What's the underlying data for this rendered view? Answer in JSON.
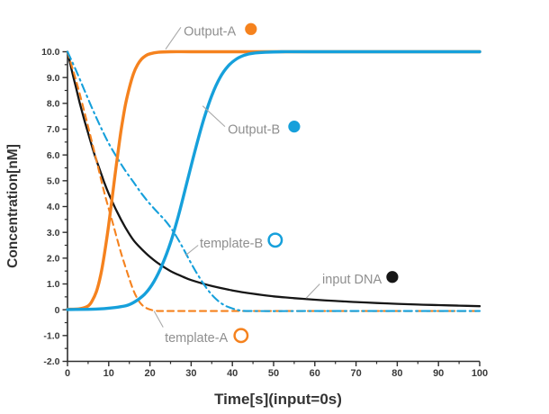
{
  "chart_data": {
    "type": "line",
    "title": "",
    "xlabel": "Time[s](input=0s)",
    "ylabel": "Concentration[nM]",
    "xlim": [
      0,
      100
    ],
    "ylim": [
      -2,
      10
    ],
    "grid": false,
    "x_tick_values": [
      0,
      10,
      20,
      30,
      40,
      50,
      60,
      70,
      80,
      90,
      100
    ],
    "x_tick_labels": [
      "0",
      "10",
      "20",
      "30",
      "40",
      "50",
      "60",
      "70",
      "80",
      "90",
      "100"
    ],
    "x_minor_step": 5,
    "y_tick_values": [
      10,
      9,
      8,
      7,
      6,
      5,
      4,
      3,
      2,
      1,
      0,
      -1,
      -2
    ],
    "y_tick_labels": [
      "10.0",
      "9.0",
      "8.0",
      "7.0",
      "6.0",
      "5.0",
      "4.0",
      "3.0",
      "2.0",
      "1.0",
      "0",
      "-1.0",
      "-2.0"
    ],
    "y_minor_step": 0.5,
    "legend_position": "inline-callouts",
    "series": [
      {
        "name": "input DNA",
        "id": "input-dna",
        "color": "#161616",
        "line": "solid",
        "width": 2.3,
        "points": [
          [
            0,
            10
          ],
          [
            1,
            9.3
          ],
          [
            2,
            8.65
          ],
          [
            3,
            8.0
          ],
          [
            4,
            7.4
          ],
          [
            5,
            6.85
          ],
          [
            6,
            6.3
          ],
          [
            7,
            5.8
          ],
          [
            8,
            5.35
          ],
          [
            9,
            4.9
          ],
          [
            10,
            4.5
          ],
          [
            12,
            3.8
          ],
          [
            14,
            3.2
          ],
          [
            16,
            2.7
          ],
          [
            18,
            2.35
          ],
          [
            20,
            2.05
          ],
          [
            22,
            1.8
          ],
          [
            25,
            1.5
          ],
          [
            28,
            1.28
          ],
          [
            30,
            1.15
          ],
          [
            35,
            0.92
          ],
          [
            40,
            0.75
          ],
          [
            45,
            0.62
          ],
          [
            50,
            0.52
          ],
          [
            55,
            0.45
          ],
          [
            60,
            0.39
          ],
          [
            65,
            0.34
          ],
          [
            70,
            0.3
          ],
          [
            75,
            0.26
          ],
          [
            80,
            0.23
          ],
          [
            85,
            0.2
          ],
          [
            90,
            0.18
          ],
          [
            95,
            0.16
          ],
          [
            100,
            0.14
          ]
        ]
      },
      {
        "name": "template-A",
        "id": "template-a",
        "color": "#F5821E",
        "line": "dashed",
        "width": 2.1,
        "points": [
          [
            0,
            10
          ],
          [
            1.5,
            9.2
          ],
          [
            3,
            8.35
          ],
          [
            5,
            7.1
          ],
          [
            7,
            5.8
          ],
          [
            9,
            4.5
          ],
          [
            11,
            3.35
          ],
          [
            13,
            2.2
          ],
          [
            15,
            1.2
          ],
          [
            16,
            0.75
          ],
          [
            17,
            0.42
          ],
          [
            18,
            0.2
          ],
          [
            19,
            0.08
          ],
          [
            20,
            0.01
          ],
          [
            21.5,
            -0.04
          ],
          [
            24,
            -0.05
          ],
          [
            40,
            -0.05
          ],
          [
            70,
            -0.05
          ],
          [
            100,
            -0.05
          ]
        ]
      },
      {
        "name": "template-B",
        "id": "template-b",
        "color": "#16A0DB",
        "line": "dashdot",
        "width": 2.1,
        "points": [
          [
            0,
            10
          ],
          [
            2,
            9.3
          ],
          [
            4,
            8.55
          ],
          [
            6,
            7.8
          ],
          [
            8,
            7.1
          ],
          [
            10,
            6.45
          ],
          [
            12,
            5.9
          ],
          [
            14,
            5.4
          ],
          [
            16,
            4.95
          ],
          [
            18,
            4.5
          ],
          [
            20,
            4.1
          ],
          [
            22,
            3.75
          ],
          [
            24,
            3.4
          ],
          [
            26,
            2.95
          ],
          [
            28,
            2.4
          ],
          [
            30,
            1.8
          ],
          [
            32,
            1.25
          ],
          [
            34,
            0.78
          ],
          [
            36,
            0.42
          ],
          [
            38,
            0.18
          ],
          [
            40,
            0.05
          ],
          [
            42,
            -0.03
          ],
          [
            45,
            -0.05
          ],
          [
            60,
            -0.05
          ],
          [
            80,
            -0.05
          ],
          [
            100,
            -0.05
          ]
        ]
      },
      {
        "name": "Output-A",
        "id": "output-a",
        "color": "#F5821E",
        "line": "solid",
        "width": 3.4,
        "points": [
          [
            0,
            0.02
          ],
          [
            3,
            0.04
          ],
          [
            5,
            0.15
          ],
          [
            6,
            0.35
          ],
          [
            7,
            0.7
          ],
          [
            8,
            1.3
          ],
          [
            9,
            2.2
          ],
          [
            10,
            3.3
          ],
          [
            11,
            4.55
          ],
          [
            12,
            5.8
          ],
          [
            13,
            6.95
          ],
          [
            14,
            7.9
          ],
          [
            15,
            8.6
          ],
          [
            16,
            9.15
          ],
          [
            17,
            9.5
          ],
          [
            18,
            9.72
          ],
          [
            19,
            9.85
          ],
          [
            20,
            9.92
          ],
          [
            22,
            9.98
          ],
          [
            25,
            10
          ],
          [
            30,
            10
          ],
          [
            40,
            10
          ],
          [
            60,
            10
          ],
          [
            80,
            10
          ],
          [
            100,
            10
          ]
        ]
      },
      {
        "name": "Output-B",
        "id": "output-b",
        "color": "#16A0DB",
        "line": "solid",
        "width": 3.4,
        "points": [
          [
            0,
            0.01
          ],
          [
            6,
            0.02
          ],
          [
            10,
            0.06
          ],
          [
            13,
            0.12
          ],
          [
            15,
            0.2
          ],
          [
            17,
            0.38
          ],
          [
            19,
            0.65
          ],
          [
            21,
            1.1
          ],
          [
            23,
            1.75
          ],
          [
            25,
            2.6
          ],
          [
            27,
            3.7
          ],
          [
            29,
            4.95
          ],
          [
            31,
            6.2
          ],
          [
            33,
            7.35
          ],
          [
            35,
            8.3
          ],
          [
            37,
            9.0
          ],
          [
            39,
            9.45
          ],
          [
            41,
            9.72
          ],
          [
            43,
            9.87
          ],
          [
            45,
            9.94
          ],
          [
            48,
            9.98
          ],
          [
            52,
            10
          ],
          [
            60,
            10
          ],
          [
            80,
            10
          ],
          [
            100,
            10
          ]
        ]
      }
    ],
    "annotations": [
      {
        "id": "output-a",
        "label": "Output-A",
        "marker": "filled",
        "color": "#F5821E",
        "text_pos": [
          28.2,
          10.62
        ],
        "marker_pos": [
          44.5,
          10.88
        ],
        "leader": [
          [
            23.8,
            10.1
          ],
          [
            27.5,
            10.95
          ]
        ]
      },
      {
        "id": "output-b",
        "label": "Output-B",
        "marker": "filled",
        "color": "#16A0DB",
        "text_pos": [
          38.9,
          6.82
        ],
        "marker_pos": [
          55.0,
          7.1
        ],
        "leader": [
          [
            32.8,
            7.9
          ],
          [
            38.2,
            7.1
          ]
        ]
      },
      {
        "id": "template-b",
        "label": "template-B",
        "marker": "open",
        "color": "#16A0DB",
        "text_pos": [
          32.1,
          2.42
        ],
        "marker_pos": [
          50.4,
          2.7
        ],
        "leader": [
          [
            28.6,
            2.1
          ],
          [
            31.7,
            2.5
          ]
        ]
      },
      {
        "id": "input-dna",
        "label": "input DNA",
        "marker": "filled",
        "color": "#161616",
        "text_pos": [
          61.8,
          1.02
        ],
        "marker_pos": [
          78.8,
          1.27
        ],
        "leader": [
          [
            57.9,
            0.45
          ],
          [
            61.2,
            1.0
          ]
        ]
      },
      {
        "id": "template-a",
        "label": "template-A",
        "marker": "open",
        "color": "#F5821E",
        "text_pos": [
          23.6,
          -1.25
        ],
        "marker_pos": [
          42.1,
          -1.0
        ],
        "leader": [
          [
            21.0,
            -0.05
          ],
          [
            23.2,
            -0.68
          ]
        ]
      }
    ],
    "colors": {
      "orange": "#F5821E",
      "blue": "#16A0DB",
      "black": "#161616",
      "axis": "#2e2e2e",
      "annotation_text": "#8f8f8f",
      "leader_line": "#a9a9a9"
    }
  }
}
